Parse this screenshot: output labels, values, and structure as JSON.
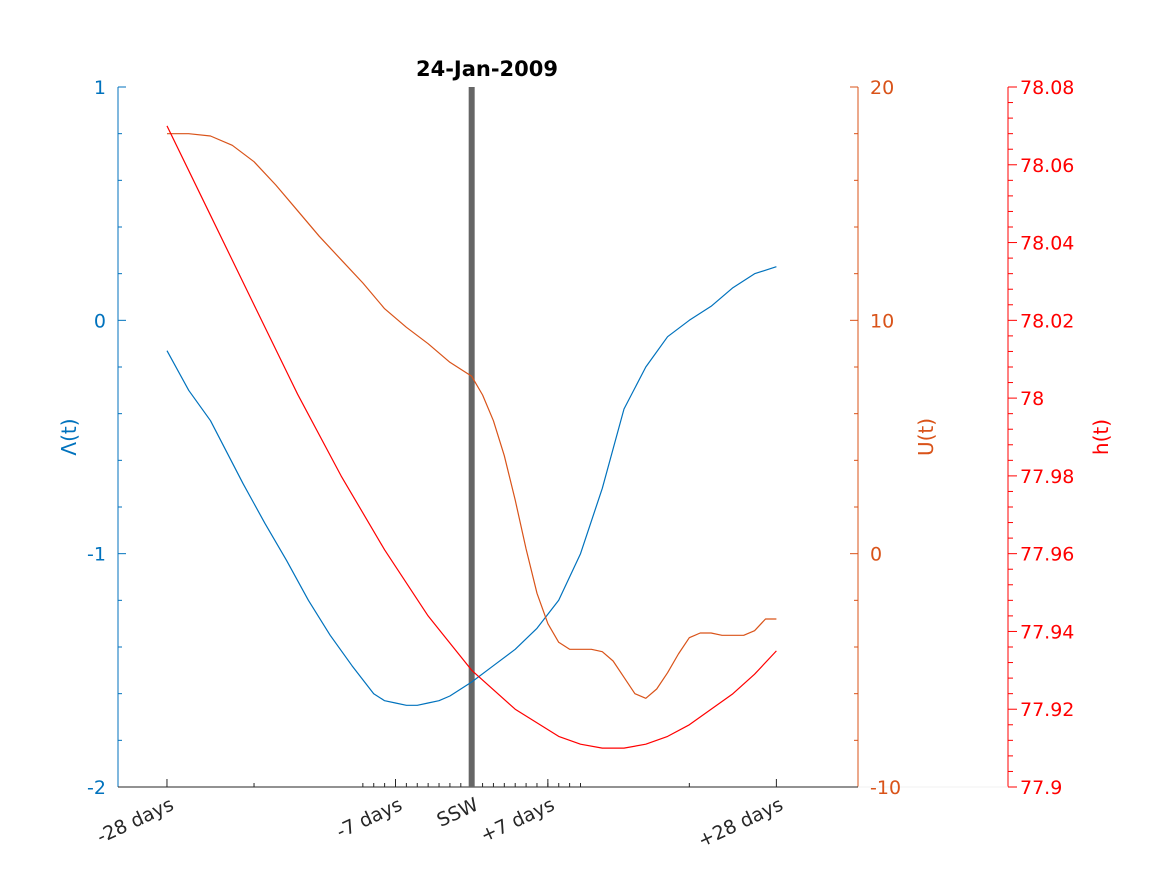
{
  "chart_data": {
    "type": "line",
    "title": "24-Jan-2009",
    "xlim": [
      -32.5,
      35.5
    ],
    "x_ticks": [
      {
        "value": -28,
        "label": "-28 days"
      },
      {
        "value": -7,
        "label": "-7 days"
      },
      {
        "value": 0,
        "label": "SSW"
      },
      {
        "value": 7,
        "label": "+7 days"
      },
      {
        "value": 28,
        "label": "+28 days"
      }
    ],
    "event_marker": {
      "x": 0,
      "color": "#666666"
    },
    "axes": [
      {
        "id": "lambda",
        "label": "Λ(t)",
        "color": "#0072BD",
        "ylim": [
          -2,
          1
        ],
        "ticks": [
          {
            "v": 1,
            "t": "1"
          },
          {
            "v": 0,
            "t": "0"
          },
          {
            "v": -1,
            "t": "-1"
          },
          {
            "v": -2,
            "t": "-2"
          }
        ]
      },
      {
        "id": "u",
        "label": "U(t)",
        "color": "#D95319",
        "ylim": [
          -10,
          20
        ],
        "ticks": [
          {
            "v": 20,
            "t": "20"
          },
          {
            "v": 10,
            "t": "10"
          },
          {
            "v": 0,
            "t": "0"
          },
          {
            "v": -10,
            "t": "-10"
          }
        ]
      },
      {
        "id": "h",
        "label": "h(t)",
        "color": "#FF0000",
        "ylim": [
          77.9,
          78.08
        ],
        "ticks": [
          {
            "v": 78.08,
            "t": "78.08"
          },
          {
            "v": 78.06,
            "t": "78.06"
          },
          {
            "v": 78.04,
            "t": "78.04"
          },
          {
            "v": 78.02,
            "t": "78.02"
          },
          {
            "v": 78.0,
            "t": "78"
          },
          {
            "v": 77.98,
            "t": "77.98"
          },
          {
            "v": 77.96,
            "t": "77.96"
          },
          {
            "v": 77.94,
            "t": "77.94"
          },
          {
            "v": 77.92,
            "t": "77.92"
          },
          {
            "v": 77.9,
            "t": "77.9"
          }
        ]
      }
    ],
    "series": [
      {
        "axis": "lambda",
        "color": "#0072BD",
        "x": [
          -28,
          -26,
          -24,
          -21,
          -19,
          -17,
          -15,
          -13,
          -11,
          -9,
          -8,
          -7,
          -6,
          -5,
          -4,
          -3,
          -2,
          -1,
          0,
          2,
          4,
          6,
          8,
          10,
          12,
          14,
          16,
          18,
          20,
          22,
          24,
          26,
          28
        ],
        "y": [
          -0.13,
          -0.3,
          -0.43,
          -0.7,
          -0.87,
          -1.03,
          -1.2,
          -1.35,
          -1.48,
          -1.6,
          -1.63,
          -1.64,
          -1.65,
          -1.65,
          -1.64,
          -1.63,
          -1.61,
          -1.58,
          -1.55,
          -1.48,
          -1.41,
          -1.32,
          -1.2,
          -1.0,
          -0.72,
          -0.38,
          -0.2,
          -0.07,
          0.0,
          0.06,
          0.14,
          0.2,
          0.23
        ]
      },
      {
        "axis": "u",
        "color": "#D95319",
        "x": [
          -28,
          -26,
          -24,
          -22,
          -20,
          -18,
          -16,
          -14,
          -12,
          -10,
          -8,
          -6,
          -4,
          -2,
          0,
          1,
          2,
          3,
          4,
          5,
          6,
          7,
          8,
          9,
          10,
          11,
          12,
          13,
          14,
          15,
          16,
          17,
          18,
          19,
          20,
          21,
          22,
          23,
          24,
          25,
          26,
          27,
          28
        ],
        "y": [
          18.0,
          18.0,
          17.9,
          17.5,
          16.8,
          15.8,
          14.7,
          13.6,
          12.6,
          11.6,
          10.5,
          9.7,
          9.0,
          8.2,
          7.6,
          6.8,
          5.7,
          4.2,
          2.3,
          0.2,
          -1.7,
          -3.0,
          -3.8,
          -4.1,
          -4.1,
          -4.1,
          -4.2,
          -4.6,
          -5.3,
          -6.0,
          -6.2,
          -5.8,
          -5.1,
          -4.3,
          -3.6,
          -3.4,
          -3.4,
          -3.5,
          -3.5,
          -3.5,
          -3.3,
          -2.8,
          -2.8
        ]
      },
      {
        "axis": "h",
        "color": "#FF0000",
        "x": [
          -28,
          -24,
          -20,
          -16,
          -12,
          -8,
          -4,
          0,
          4,
          8,
          10,
          12,
          14,
          16,
          18,
          20,
          22,
          24,
          26,
          28
        ],
        "y": [
          78.07,
          78.047,
          78.024,
          78.001,
          77.98,
          77.961,
          77.944,
          77.93,
          77.92,
          77.913,
          77.911,
          77.91,
          77.91,
          77.911,
          77.913,
          77.916,
          77.92,
          77.924,
          77.929,
          77.935
        ]
      }
    ]
  }
}
